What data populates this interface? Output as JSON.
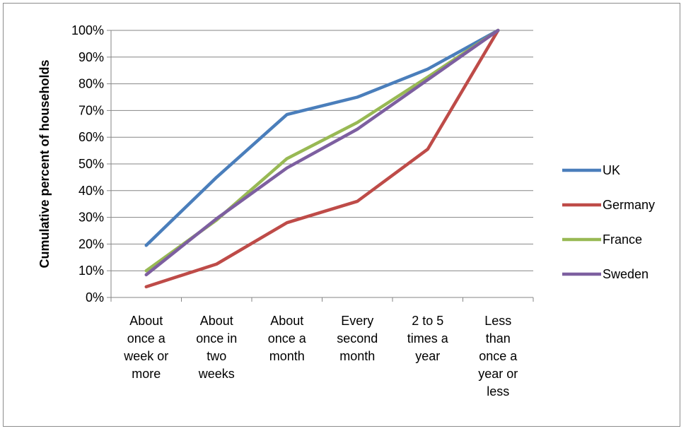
{
  "chart_data": {
    "type": "line",
    "ylabel": "Cumulative percent of households",
    "ylim": [
      0,
      100
    ],
    "yticks": [
      "0%",
      "10%",
      "20%",
      "30%",
      "40%",
      "50%",
      "60%",
      "70%",
      "80%",
      "90%",
      "100%"
    ],
    "categories": [
      [
        "About",
        "once a",
        "week or",
        "more"
      ],
      [
        "About",
        "once in",
        "two",
        "weeks"
      ],
      [
        "About",
        "once a",
        "month"
      ],
      [
        "Every",
        "second",
        "month"
      ],
      [
        "2 to 5",
        "times a",
        "year"
      ],
      [
        "Less",
        "than",
        "once a",
        "year or",
        "less"
      ]
    ],
    "series": [
      {
        "name": "UK",
        "color": "#4a7ebb",
        "values": [
          19.5,
          45,
          68.5,
          75,
          85.5,
          100
        ]
      },
      {
        "name": "Germany",
        "color": "#be4b48",
        "values": [
          4,
          12.5,
          28,
          36,
          55.5,
          100
        ]
      },
      {
        "name": "France",
        "color": "#98b954",
        "values": [
          10,
          29,
          52,
          65.5,
          82.5,
          100
        ]
      },
      {
        "name": "Sweden",
        "color": "#7d5fa0",
        "values": [
          8.5,
          29.5,
          48.5,
          63,
          81.5,
          100
        ]
      }
    ],
    "grid": true,
    "legend_position": "right"
  }
}
